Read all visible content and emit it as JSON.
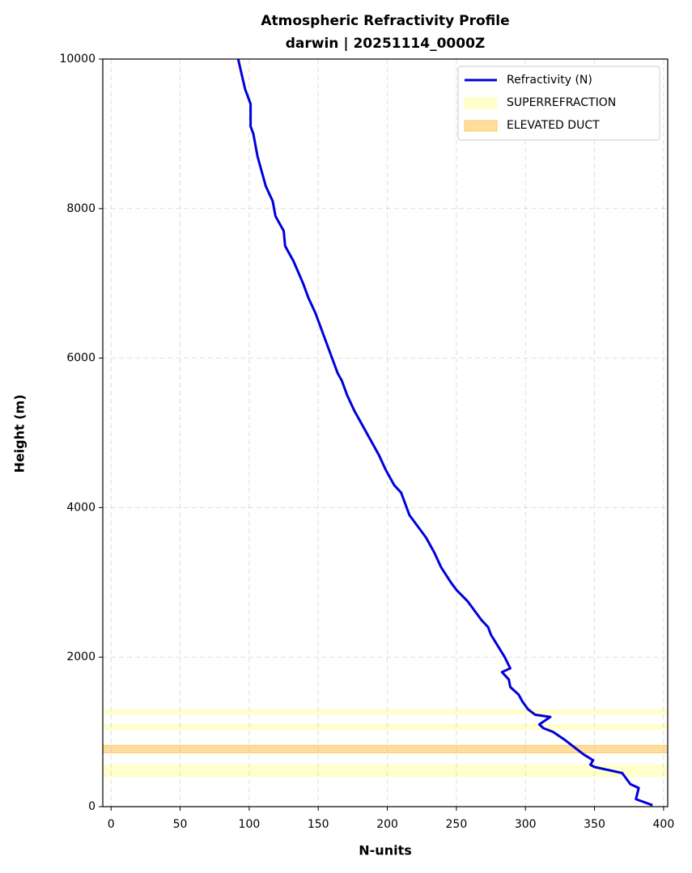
{
  "chart_data": {
    "type": "line",
    "title": "Atmospheric Refractivity Profile",
    "subtitle": "darwin | 20251114_0000Z",
    "x_label": "N-units",
    "y_label": "Height (m)",
    "xlim": [
      -6,
      403
    ],
    "ylim": [
      0,
      10000
    ],
    "xticks": [
      0,
      50,
      100,
      150,
      200,
      250,
      300,
      350,
      400
    ],
    "yticks": [
      0,
      2000,
      4000,
      6000,
      8000,
      10000
    ],
    "grid": true,
    "legend": "upper right",
    "series": [
      {
        "name": "Refractivity (N)",
        "color": "#0000dd",
        "x": [
          392,
          380,
          382,
          376,
          370,
          350,
          347,
          349,
          342,
          335,
          328,
          320,
          313,
          310,
          318,
          307,
          302,
          298,
          295,
          289,
          288,
          283,
          289,
          285,
          280,
          275,
          273,
          268,
          264,
          262,
          258,
          250,
          246,
          239,
          234,
          228,
          220,
          216,
          214,
          210,
          205,
          199,
          194,
          188,
          182,
          176,
          171,
          167,
          164,
          160,
          156,
          152,
          148,
          143,
          139,
          132,
          126,
          125,
          119,
          117,
          112,
          109,
          106,
          103,
          101,
          101,
          97,
          92
        ],
        "values": [
          20,
          100,
          250,
          300,
          450,
          530,
          560,
          620,
          700,
          800,
          900,
          1000,
          1050,
          1100,
          1200,
          1230,
          1300,
          1400,
          1500,
          1600,
          1700,
          1800,
          1850,
          2000,
          2150,
          2300,
          2400,
          2500,
          2600,
          2650,
          2750,
          2900,
          3000,
          3200,
          3400,
          3600,
          3800,
          3900,
          4000,
          4200,
          4300,
          4500,
          4700,
          4900,
          5100,
          5300,
          5500,
          5700,
          5800,
          6000,
          6200,
          6400,
          6600,
          6800,
          7000,
          7300,
          7500,
          7700,
          7900,
          8100,
          8300,
          8500,
          8700,
          9000,
          9100,
          9400,
          9600,
          10000
        ]
      }
    ],
    "bands": [
      {
        "name": "SUPERREFRACTION",
        "color": "#ffff99",
        "spans": [
          [
            400,
            560
          ],
          [
            1030,
            1100
          ],
          [
            1240,
            1300
          ]
        ]
      },
      {
        "name": "ELEVATED DUCT",
        "color": "#ffa500",
        "spans": [
          [
            720,
            820
          ]
        ]
      }
    ]
  }
}
